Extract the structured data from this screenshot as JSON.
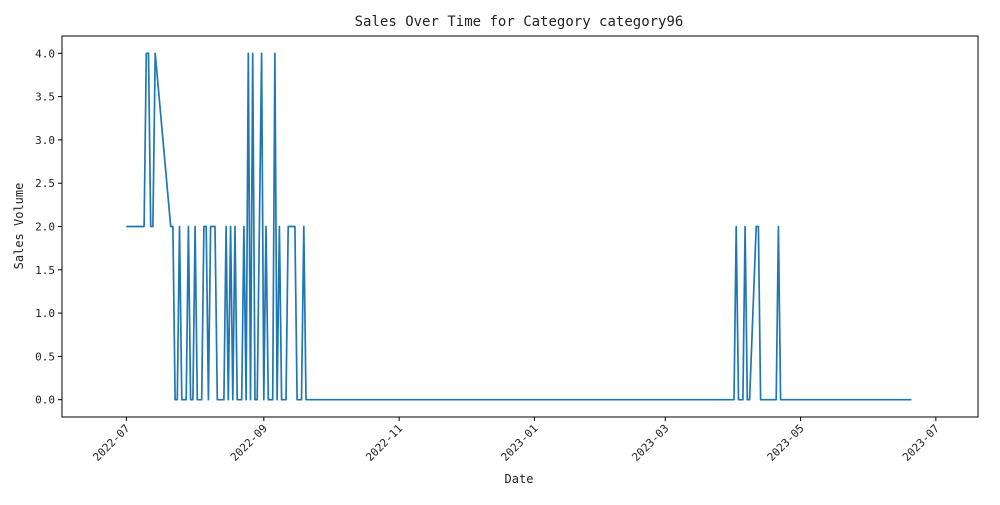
{
  "chart_data": {
    "type": "line",
    "title": "Sales Over Time for Category category96",
    "xlabel": "Date",
    "ylabel": "Sales Volume",
    "ylim": [
      -0.2,
      4.2
    ],
    "xlim": [
      "2022-06-02",
      "2023-07-20"
    ],
    "grid": false,
    "line_color": "#1f77b4",
    "x_ticks": [
      "2022-07-01",
      "2022-09-01",
      "2022-11-01",
      "2023-01-01",
      "2023-03-01",
      "2023-05-01",
      "2023-07-01"
    ],
    "x_tick_labels": [
      "2022-07",
      "2022-09",
      "2022-11",
      "2023-01",
      "2023-03",
      "2023-05",
      "2023-07"
    ],
    "y_ticks": [
      0.0,
      0.5,
      1.0,
      1.5,
      2.0,
      2.5,
      3.0,
      3.5,
      4.0
    ],
    "y_tick_labels": [
      "0.0",
      "0.5",
      "1.0",
      "1.5",
      "2.0",
      "2.5",
      "3.0",
      "3.5",
      "4.0"
    ],
    "series": [
      {
        "x": [
          "2022-07-01",
          "2022-07-09",
          "2022-07-10",
          "2022-07-11",
          "2022-07-12",
          "2022-07-13",
          "2022-07-14",
          "2022-07-21",
          "2022-07-22",
          "2022-07-23",
          "2022-07-24",
          "2022-07-25",
          "2022-07-26",
          "2022-07-27",
          "2022-07-28",
          "2022-07-29",
          "2022-07-30",
          "2022-07-31",
          "2022-08-01",
          "2022-08-02",
          "2022-08-03",
          "2022-08-04",
          "2022-08-05",
          "2022-08-06",
          "2022-08-07",
          "2022-08-08",
          "2022-08-09",
          "2022-08-10",
          "2022-08-11",
          "2022-08-12",
          "2022-08-13",
          "2022-08-14",
          "2022-08-15",
          "2022-08-16",
          "2022-08-17",
          "2022-08-18",
          "2022-08-19",
          "2022-08-20",
          "2022-08-21",
          "2022-08-22",
          "2022-08-23",
          "2022-08-24",
          "2022-08-25",
          "2022-08-26",
          "2022-08-27",
          "2022-08-28",
          "2022-08-29",
          "2022-08-30",
          "2022-08-31",
          "2022-09-01",
          "2022-09-02",
          "2022-09-03",
          "2022-09-04",
          "2022-09-05",
          "2022-09-06",
          "2022-09-07",
          "2022-09-08",
          "2022-09-09",
          "2022-09-10",
          "2022-09-11",
          "2022-09-12",
          "2022-09-13",
          "2022-09-14",
          "2022-09-15",
          "2022-09-16",
          "2022-09-17",
          "2022-09-18",
          "2022-09-19",
          "2022-09-20",
          "2022-09-21",
          "2022-09-22",
          "2022-09-23",
          "2022-09-24",
          "2022-09-25",
          "2022-09-26",
          "2022-09-27",
          "2023-04-01",
          "2023-04-02",
          "2023-04-03",
          "2023-04-04",
          "2023-04-05",
          "2023-04-06",
          "2023-04-07",
          "2023-04-08",
          "2023-04-11",
          "2023-04-12",
          "2023-04-13",
          "2023-04-14",
          "2023-04-20",
          "2023-04-21",
          "2023-04-22",
          "2023-06-20"
        ],
        "y": [
          2,
          2,
          4,
          4,
          2,
          2,
          4,
          2,
          2,
          0,
          0,
          2,
          0,
          0,
          0,
          2,
          0,
          0,
          2,
          0,
          0,
          0,
          2,
          2,
          0,
          2,
          2,
          2,
          0,
          0,
          0,
          0,
          2,
          0,
          2,
          0,
          2,
          0,
          0,
          0,
          2,
          0,
          4,
          0,
          4,
          0,
          0,
          2,
          4,
          0,
          2,
          0,
          0,
          0,
          4,
          0,
          2,
          0,
          0,
          0,
          2,
          2,
          2,
          2,
          0,
          0,
          0,
          2,
          0,
          0,
          0,
          0,
          0,
          0,
          0,
          0,
          0,
          2,
          0,
          0,
          0,
          2,
          0,
          0,
          2,
          2,
          0,
          0,
          0,
          2,
          0,
          0
        ]
      }
    ]
  }
}
